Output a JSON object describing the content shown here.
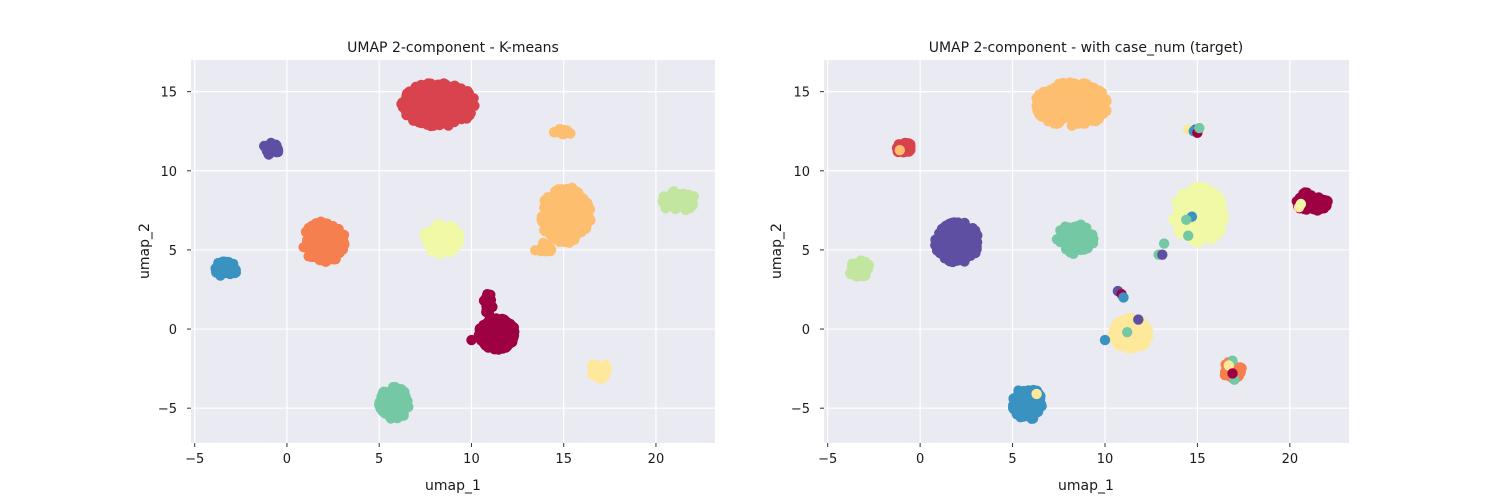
{
  "chart_data": [
    {
      "type": "scatter",
      "title": "UMAP 2-component - K-means",
      "xlabel": "umap_1",
      "ylabel": "umap_2",
      "xlim": [
        -5.2,
        23.2
      ],
      "ylim": [
        -7.2,
        17.0
      ],
      "xticks": [
        -5,
        0,
        5,
        10,
        15,
        20
      ],
      "yticks": [
        -5,
        0,
        5,
        10,
        15
      ],
      "grid": true,
      "background": "#eaeaf2",
      "clusters": [
        {
          "label": "red",
          "color": "#d8434e",
          "cx": 8.2,
          "cy": 14.2,
          "rx": 2.0,
          "ry": 1.4,
          "n": 300
        },
        {
          "label": "purple",
          "color": "#5e4fa2",
          "cx": -0.85,
          "cy": 11.4,
          "rx": 0.45,
          "ry": 0.4,
          "n": 25
        },
        {
          "label": "orange-small",
          "color": "#fdbf6f",
          "cx": 15.0,
          "cy": 12.5,
          "rx": 0.55,
          "ry": 0.25,
          "n": 15
        },
        {
          "label": "orange",
          "color": "#fdbf6f",
          "cx": 15.1,
          "cy": 7.2,
          "rx": 1.4,
          "ry": 1.8,
          "n": 220
        },
        {
          "label": "orange-lower",
          "color": "#fdbf6f",
          "cx": 13.9,
          "cy": 5.1,
          "rx": 0.5,
          "ry": 0.35,
          "n": 15
        },
        {
          "label": "green-light",
          "color": "#c2e6a0",
          "cx": 21.2,
          "cy": 8.1,
          "rx": 1.0,
          "ry": 0.65,
          "n": 40
        },
        {
          "label": "coral",
          "color": "#f57f4f",
          "cx": 2.0,
          "cy": 5.5,
          "rx": 1.2,
          "ry": 1.3,
          "n": 150
        },
        {
          "label": "yellow",
          "color": "#f1f8a6",
          "cx": 8.4,
          "cy": 5.7,
          "rx": 1.0,
          "ry": 0.95,
          "n": 110
        },
        {
          "label": "blue",
          "color": "#3a92c0",
          "cx": -3.3,
          "cy": 3.8,
          "rx": 0.6,
          "ry": 0.55,
          "n": 40
        },
        {
          "label": "crimson",
          "color": "#9e0142",
          "cx": 11.4,
          "cy": -0.3,
          "rx": 1.0,
          "ry": 1.0,
          "n": 200
        },
        {
          "label": "crimson-tail",
          "color": "#9e0142",
          "cx": 10.9,
          "cy": 1.6,
          "rx": 0.25,
          "ry": 0.75,
          "n": 25
        },
        {
          "label": "teal",
          "color": "#75c8a4",
          "cx": 5.8,
          "cy": -4.7,
          "rx": 0.8,
          "ry": 1.05,
          "n": 90
        },
        {
          "label": "pale-yellow",
          "color": "#fee89b",
          "cx": 16.9,
          "cy": -2.6,
          "rx": 0.5,
          "ry": 0.6,
          "n": 35
        }
      ],
      "points": [
        {
          "x": 10.0,
          "y": -0.7,
          "color": "#9e0142"
        }
      ]
    },
    {
      "type": "scatter",
      "title": "UMAP 2-component - with case_num (target)",
      "xlabel": "umap_1",
      "ylabel": "umap_2",
      "xlim": [
        -5.2,
        23.2
      ],
      "ylim": [
        -7.2,
        17.0
      ],
      "xticks": [
        -5,
        0,
        5,
        10,
        15,
        20
      ],
      "yticks": [
        -5,
        0,
        5,
        10,
        15
      ],
      "grid": true,
      "background": "#eaeaf2",
      "clusters": [
        {
          "label": "orange",
          "color": "#fdbf6f",
          "cx": 8.2,
          "cy": 14.2,
          "rx": 2.0,
          "ry": 1.4,
          "n": 300
        },
        {
          "label": "red",
          "color": "#d8434e",
          "cx": -0.85,
          "cy": 11.4,
          "rx": 0.45,
          "ry": 0.4,
          "n": 25
        },
        {
          "label": "purple",
          "color": "#5e4fa2",
          "cx": 2.0,
          "cy": 5.5,
          "rx": 1.2,
          "ry": 1.3,
          "n": 150
        },
        {
          "label": "yellow",
          "color": "#f1f8a6",
          "cx": 15.1,
          "cy": 7.2,
          "rx": 1.4,
          "ry": 1.8,
          "n": 220
        },
        {
          "label": "crimson",
          "color": "#9e0142",
          "cx": 21.2,
          "cy": 8.1,
          "rx": 1.0,
          "ry": 0.65,
          "n": 40
        },
        {
          "label": "green-light",
          "color": "#c2e6a0",
          "cx": -3.3,
          "cy": 3.8,
          "rx": 0.6,
          "ry": 0.55,
          "n": 40
        },
        {
          "label": "teal",
          "color": "#75c8a4",
          "cx": 8.4,
          "cy": 5.7,
          "rx": 1.0,
          "ry": 0.95,
          "n": 110
        },
        {
          "label": "pale-yellow",
          "color": "#fee89b",
          "cx": 11.4,
          "cy": -0.3,
          "rx": 1.0,
          "ry": 1.0,
          "n": 200
        },
        {
          "label": "blue",
          "color": "#3a92c0",
          "cx": 5.8,
          "cy": -4.7,
          "rx": 0.8,
          "ry": 1.05,
          "n": 90
        },
        {
          "label": "coral",
          "color": "#f57f4f",
          "cx": 16.9,
          "cy": -2.6,
          "rx": 0.5,
          "ry": 0.6,
          "n": 35
        }
      ],
      "points": [
        {
          "x": 14.5,
          "y": 12.6,
          "color": "#fee89b"
        },
        {
          "x": 14.9,
          "y": 12.6,
          "color": "#5e4fa2"
        },
        {
          "x": 14.8,
          "y": 12.5,
          "color": "#3a92c0"
        },
        {
          "x": 15.0,
          "y": 12.4,
          "color": "#9e0142"
        },
        {
          "x": 15.1,
          "y": 12.7,
          "color": "#75c8a4"
        },
        {
          "x": -1.1,
          "y": 11.3,
          "color": "#fdbf6f"
        },
        {
          "x": 20.5,
          "y": 7.7,
          "color": "#fee89b"
        },
        {
          "x": 20.6,
          "y": 7.9,
          "color": "#f1f8a6"
        },
        {
          "x": 14.7,
          "y": 7.1,
          "color": "#3a92c0"
        },
        {
          "x": 14.4,
          "y": 6.9,
          "color": "#75c8a4"
        },
        {
          "x": 14.5,
          "y": 5.9,
          "color": "#75c8a4"
        },
        {
          "x": 13.2,
          "y": 5.4,
          "color": "#75c8a4"
        },
        {
          "x": 12.9,
          "y": 4.7,
          "color": "#75c8a4"
        },
        {
          "x": 13.1,
          "y": 4.7,
          "color": "#5e4fa2"
        },
        {
          "x": 10.7,
          "y": 2.4,
          "color": "#5e4fa2"
        },
        {
          "x": 10.9,
          "y": 2.2,
          "color": "#9e0142"
        },
        {
          "x": 11.0,
          "y": 2.0,
          "color": "#3a92c0"
        },
        {
          "x": 11.8,
          "y": 0.6,
          "color": "#5e4fa2"
        },
        {
          "x": 11.2,
          "y": -0.2,
          "color": "#75c8a4"
        },
        {
          "x": 10.0,
          "y": -0.7,
          "color": "#3a92c0"
        },
        {
          "x": 16.9,
          "y": -2.0,
          "color": "#75c8a4"
        },
        {
          "x": 16.7,
          "y": -2.3,
          "color": "#fee89b"
        },
        {
          "x": 17.0,
          "y": -3.2,
          "color": "#75c8a4"
        },
        {
          "x": 16.9,
          "y": -2.8,
          "color": "#9e0142"
        },
        {
          "x": 6.3,
          "y": -4.1,
          "color": "#fee89b"
        }
      ]
    }
  ]
}
